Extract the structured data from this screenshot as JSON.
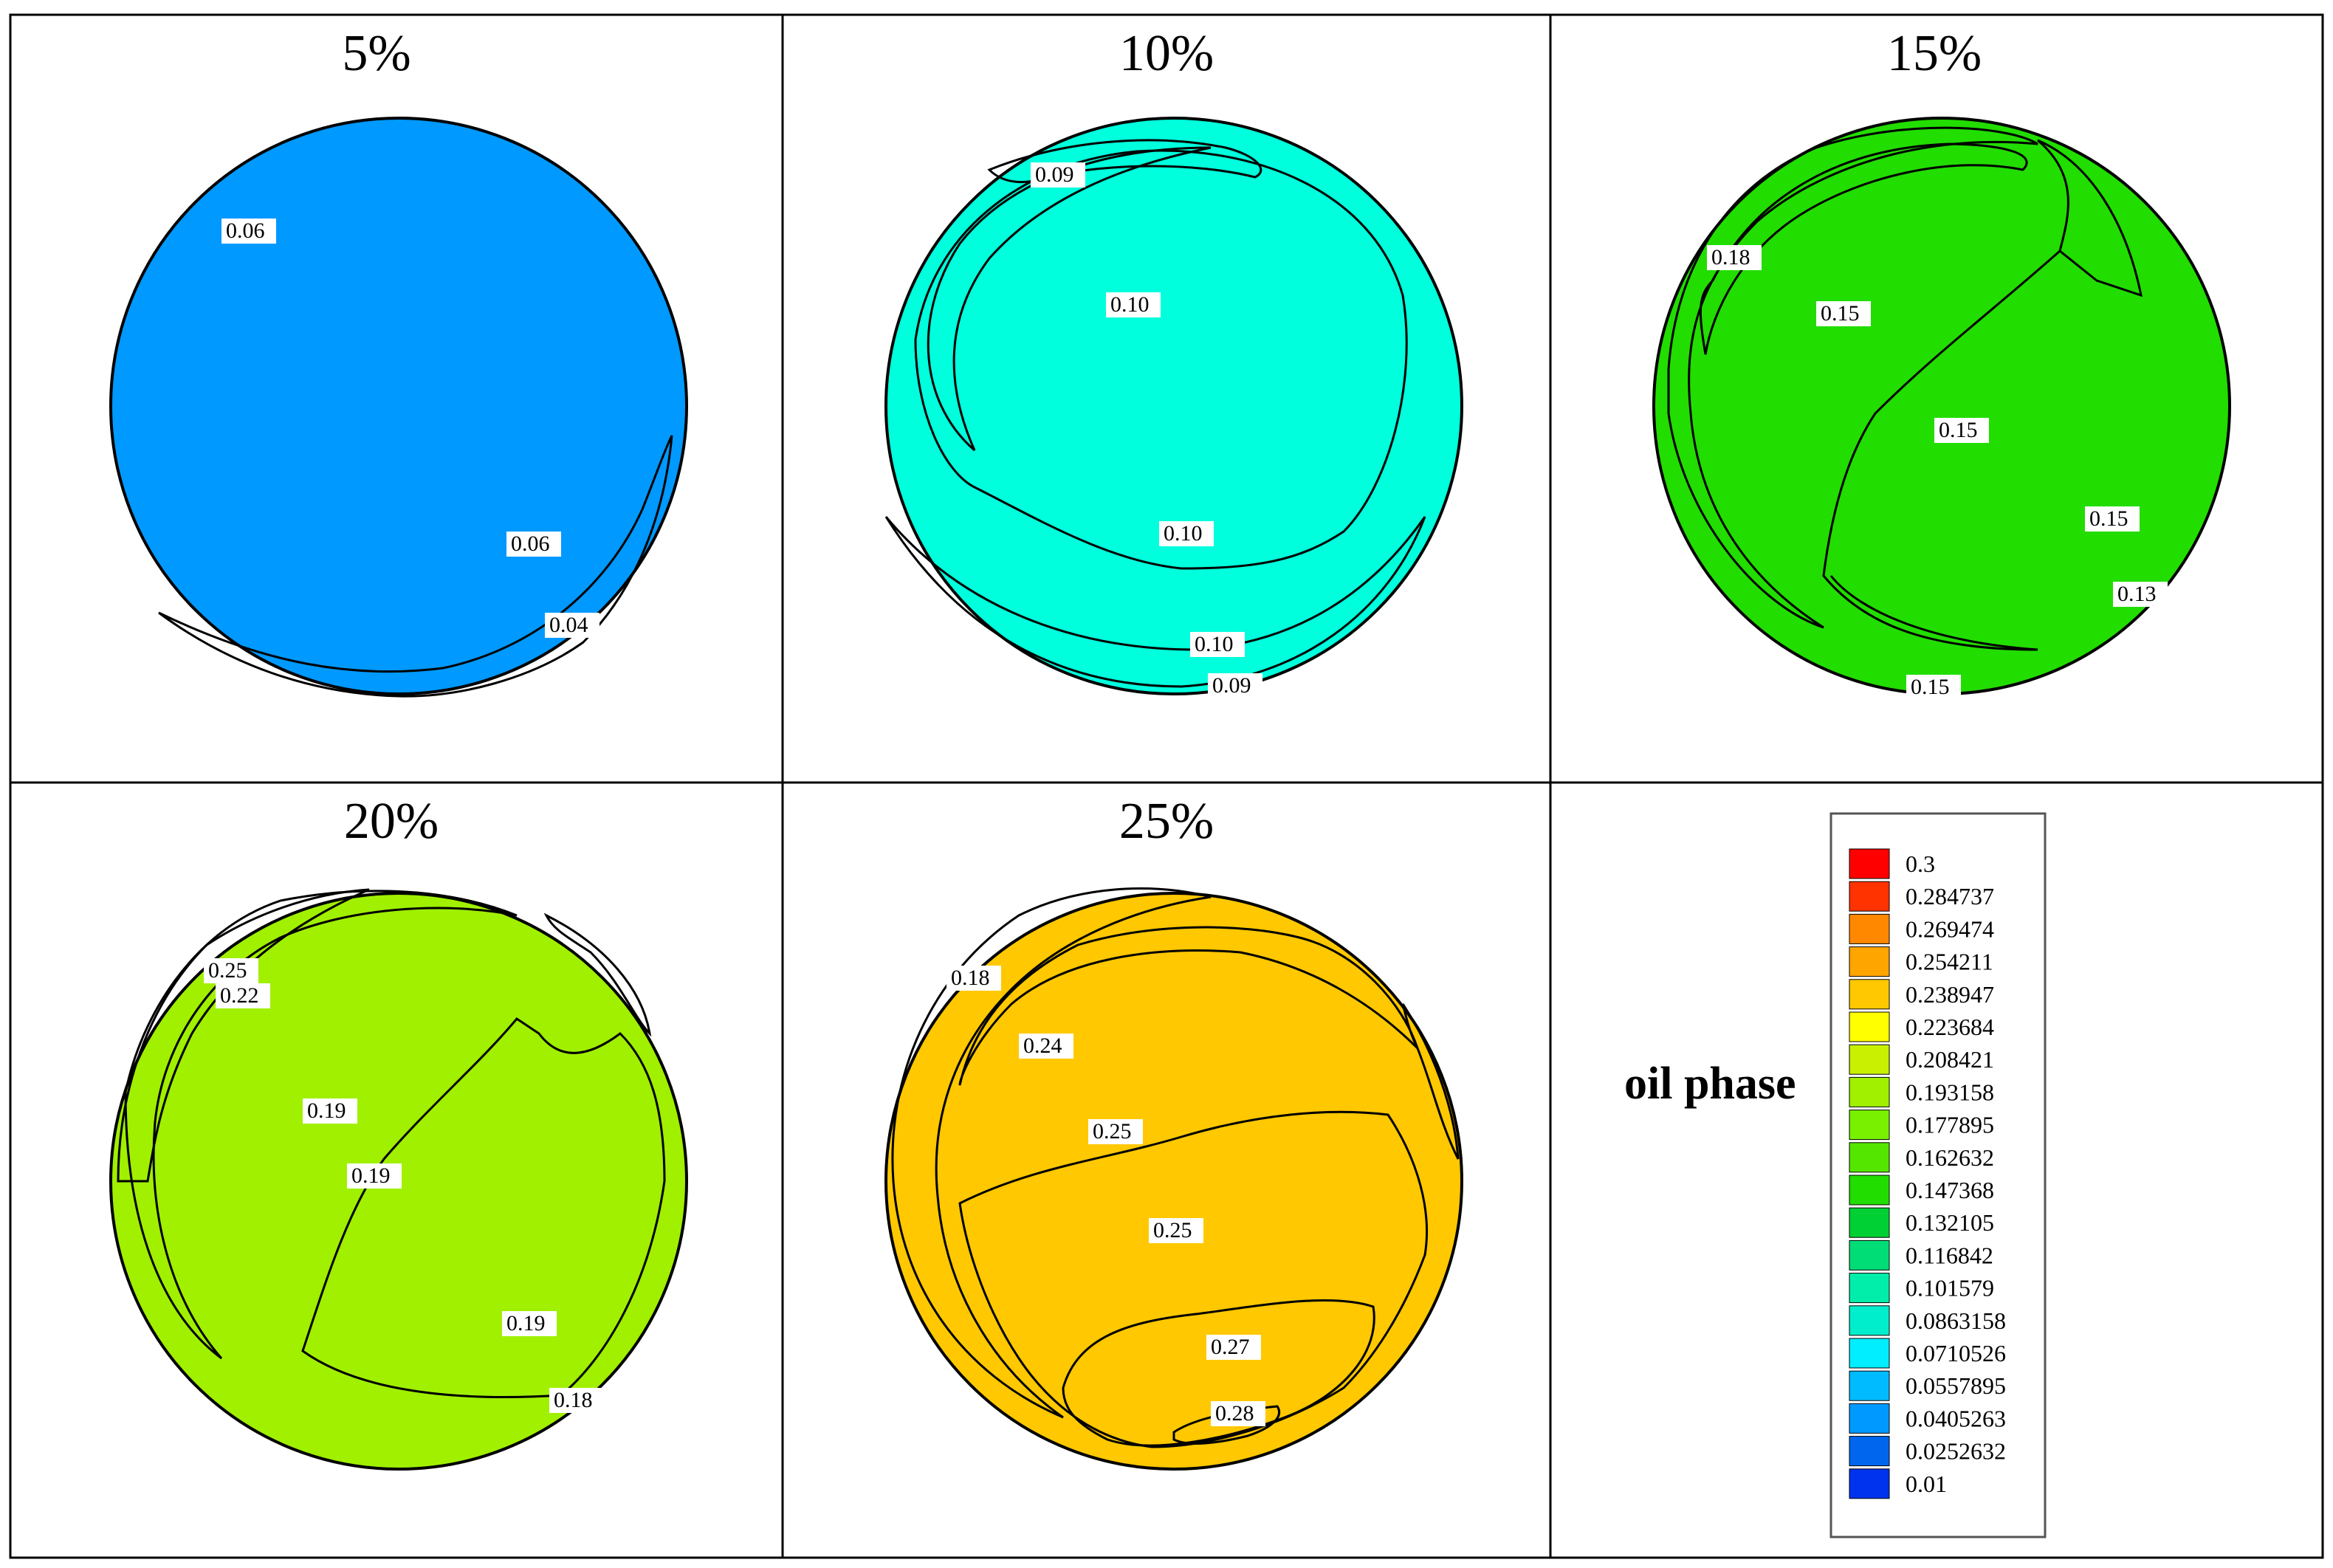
{
  "figure": {
    "panels": [
      {
        "title": "5%",
        "labels": [
          "0.06",
          "0.06",
          "0.04"
        ]
      },
      {
        "title": "10%",
        "labels": [
          "0.09",
          "0.10",
          "0.10",
          "0.10",
          "0.09"
        ]
      },
      {
        "title": "15%",
        "labels": [
          "0.18",
          "0.15",
          "0.15",
          "0.15",
          "0.13",
          "0.15"
        ]
      },
      {
        "title": "20%",
        "labels": [
          "0.25",
          "0.22",
          "0.19",
          "0.19",
          "0.19",
          "0.18"
        ]
      },
      {
        "title": "25%",
        "labels": [
          "0.18",
          "0.24",
          "0.25",
          "0.25",
          "0.27",
          "0.28"
        ]
      }
    ]
  },
  "legend": {
    "title": "oil phase",
    "levels": [
      "0.3",
      "0.284737",
      "0.269474",
      "0.254211",
      "0.238947",
      "0.223684",
      "0.208421",
      "0.193158",
      "0.177895",
      "0.162632",
      "0.147368",
      "0.132105",
      "0.116842",
      "0.101579",
      "0.0863158",
      "0.0710526",
      "0.0557895",
      "0.0405263",
      "0.0252632",
      "0.01"
    ],
    "colors": [
      "#ff0000",
      "#ff3300",
      "#ff8800",
      "#ffa500",
      "#ffc800",
      "#ffff00",
      "#c8f000",
      "#a0f000",
      "#78f000",
      "#55e600",
      "#22dd00",
      "#00d033",
      "#00dd77",
      "#00eeaa",
      "#00eecc",
      "#00eeff",
      "#00bbff",
      "#0099ff",
      "#0066ee",
      "#0033ee"
    ]
  }
}
